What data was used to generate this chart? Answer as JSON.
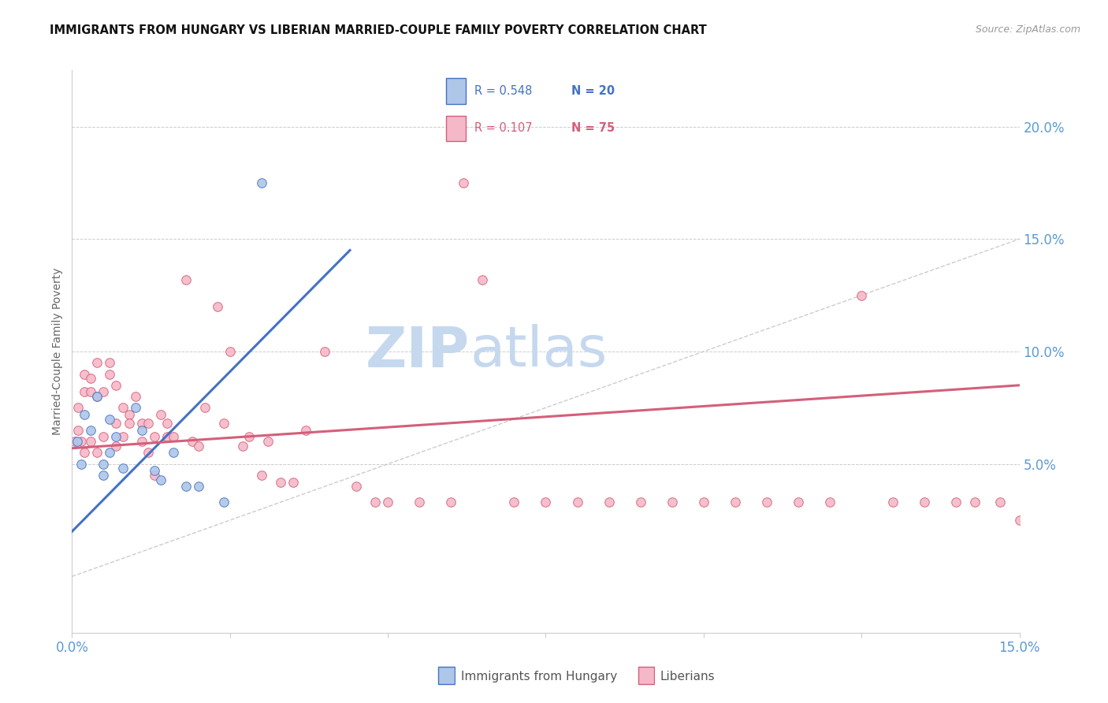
{
  "title": "IMMIGRANTS FROM HUNGARY VS LIBERIAN MARRIED-COUPLE FAMILY POVERTY CORRELATION CHART",
  "source": "Source: ZipAtlas.com",
  "ylabel": "Married-Couple Family Poverty",
  "right_yticks": [
    "20.0%",
    "15.0%",
    "10.0%",
    "5.0%"
  ],
  "right_ytick_vals": [
    0.2,
    0.15,
    0.1,
    0.05
  ],
  "xmin": 0.0,
  "xmax": 0.15,
  "ymin": -0.025,
  "ymax": 0.225,
  "legend_blue_R": "R = 0.548",
  "legend_blue_N": "N = 20",
  "legend_pink_R": "R = 0.107",
  "legend_pink_N": "N = 75",
  "blue_dot_color": "#aec6e8",
  "pink_dot_color": "#f5b8c8",
  "blue_line_color": "#4472c4",
  "pink_line_color": "#d45f7a",
  "axis_tick_color": "#5b9bd5",
  "grid_color": "#cccccc",
  "watermark_ZIP_color": "#c5d8ee",
  "watermark_atlas_color": "#c5d8ee",
  "diagonal_color": "#c0c0c0",
  "blue_scatter_x": [
    0.0008,
    0.0015,
    0.002,
    0.003,
    0.004,
    0.005,
    0.005,
    0.006,
    0.006,
    0.007,
    0.008,
    0.01,
    0.011,
    0.013,
    0.014,
    0.016,
    0.018,
    0.02,
    0.024,
    0.03
  ],
  "blue_scatter_y": [
    0.06,
    0.05,
    0.072,
    0.065,
    0.08,
    0.045,
    0.05,
    0.055,
    0.07,
    0.062,
    0.048,
    0.075,
    0.065,
    0.047,
    0.043,
    0.055,
    0.04,
    0.04,
    0.033,
    0.175
  ],
  "pink_scatter_x": [
    0.0005,
    0.001,
    0.001,
    0.0015,
    0.002,
    0.002,
    0.002,
    0.003,
    0.003,
    0.003,
    0.004,
    0.004,
    0.004,
    0.005,
    0.005,
    0.006,
    0.006,
    0.007,
    0.007,
    0.007,
    0.008,
    0.008,
    0.009,
    0.009,
    0.01,
    0.011,
    0.011,
    0.012,
    0.012,
    0.013,
    0.013,
    0.014,
    0.015,
    0.015,
    0.016,
    0.018,
    0.019,
    0.02,
    0.021,
    0.023,
    0.024,
    0.025,
    0.027,
    0.028,
    0.03,
    0.031,
    0.033,
    0.035,
    0.037,
    0.04,
    0.045,
    0.048,
    0.05,
    0.055,
    0.06,
    0.062,
    0.065,
    0.07,
    0.075,
    0.08,
    0.085,
    0.09,
    0.095,
    0.1,
    0.105,
    0.11,
    0.115,
    0.12,
    0.125,
    0.13,
    0.135,
    0.14,
    0.143,
    0.147,
    0.15
  ],
  "pink_scatter_y": [
    0.06,
    0.065,
    0.075,
    0.06,
    0.09,
    0.082,
    0.055,
    0.088,
    0.082,
    0.06,
    0.095,
    0.08,
    0.055,
    0.082,
    0.062,
    0.09,
    0.095,
    0.085,
    0.068,
    0.058,
    0.075,
    0.062,
    0.072,
    0.068,
    0.08,
    0.068,
    0.06,
    0.068,
    0.055,
    0.062,
    0.045,
    0.072,
    0.068,
    0.062,
    0.062,
    0.132,
    0.06,
    0.058,
    0.075,
    0.12,
    0.068,
    0.1,
    0.058,
    0.062,
    0.045,
    0.06,
    0.042,
    0.042,
    0.065,
    0.1,
    0.04,
    0.033,
    0.033,
    0.033,
    0.033,
    0.175,
    0.132,
    0.033,
    0.033,
    0.033,
    0.033,
    0.033,
    0.033,
    0.033,
    0.033,
    0.033,
    0.033,
    0.033,
    0.125,
    0.033,
    0.033,
    0.033,
    0.033,
    0.033,
    0.025
  ],
  "blue_line_x": [
    0.0,
    0.044
  ],
  "blue_line_y": [
    0.02,
    0.145
  ],
  "pink_line_x": [
    0.0,
    0.15
  ],
  "pink_line_y": [
    0.057,
    0.085
  ]
}
